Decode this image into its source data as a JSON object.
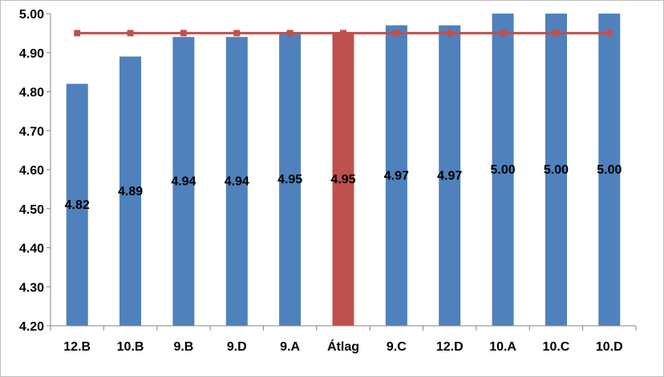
{
  "chart_data": {
    "type": "bar",
    "categories": [
      "12.B",
      "10.B",
      "9.B",
      "9.D",
      "9.A",
      "Átlag",
      "9.C",
      "12.D",
      "10.A",
      "10.C",
      "10.D"
    ],
    "values": [
      4.82,
      4.89,
      4.94,
      4.94,
      4.95,
      4.95,
      4.97,
      4.97,
      5.0,
      5.0,
      5.0
    ],
    "data_labels": [
      "4.82",
      "4.89",
      "4.94",
      "4.94",
      "4.95",
      "4.95",
      "4.97",
      "4.97",
      "5.00",
      "5.00",
      "5.00"
    ],
    "highlight_category": "Átlag",
    "reference_line": {
      "value": 4.95,
      "marker": "square"
    },
    "ylim": [
      4.2,
      5.0
    ],
    "yticks": [
      "4.20",
      "4.30",
      "4.40",
      "4.50",
      "4.60",
      "4.70",
      "4.80",
      "4.90",
      "5.00"
    ],
    "grid": false,
    "legend": "none",
    "title": "",
    "xlabel": "",
    "ylabel": "",
    "colors": {
      "bar": "#4f81bd",
      "highlight_bar": "#c0504d",
      "reference_line": "#c0504d",
      "axis": "#868686"
    }
  }
}
